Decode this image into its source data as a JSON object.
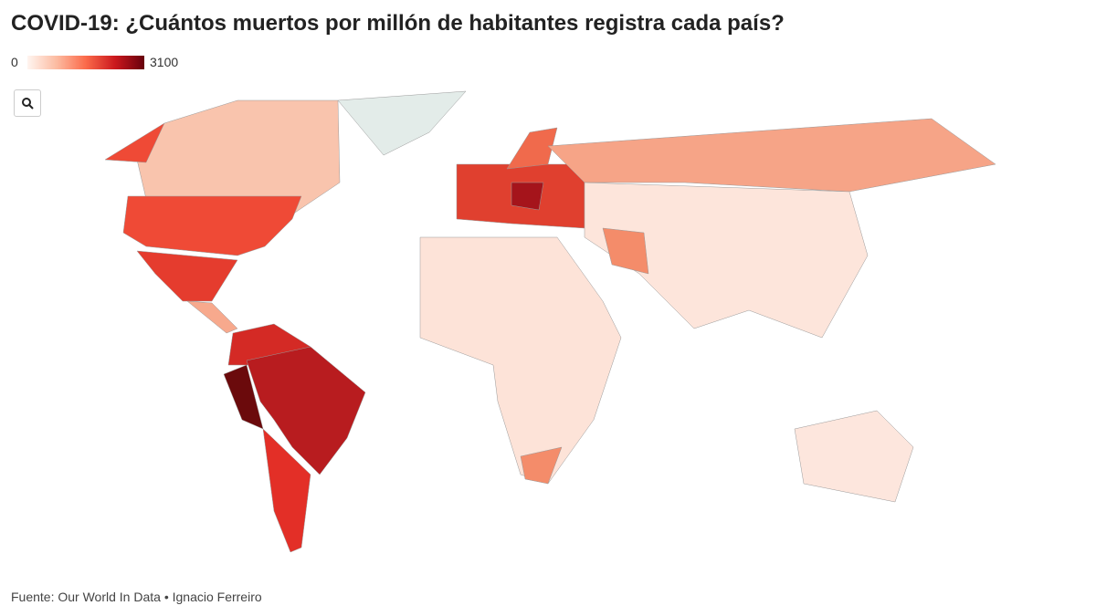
{
  "chart_data": {
    "type": "choropleth",
    "title": "COVID-19: ¿Cuántos muertos por millón de habitantes registra cada país?",
    "legend": {
      "min": 0,
      "max": 3100,
      "colors": [
        "#fff5f0",
        "#fcbba1",
        "#fb6a4a",
        "#cb181d",
        "#67000d"
      ]
    },
    "source": "Fuente: Our World In Data • Ignacio Ferreiro"
  }
}
